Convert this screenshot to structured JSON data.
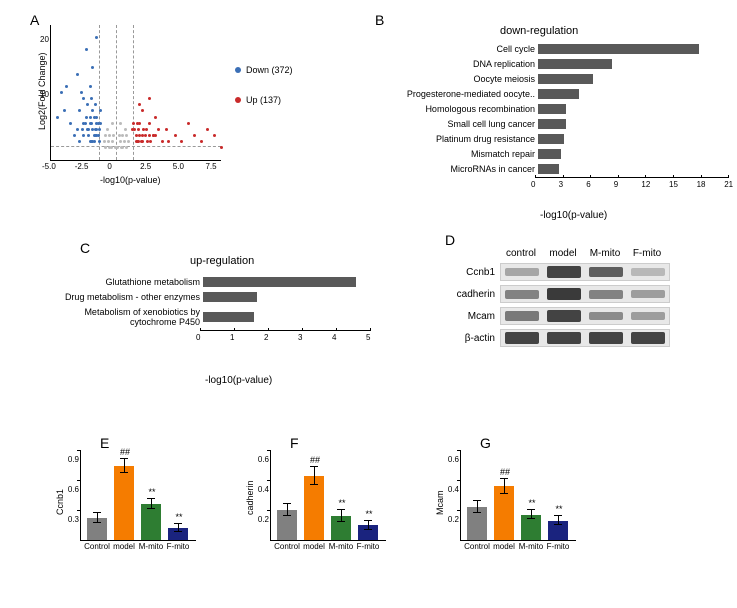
{
  "panels": {
    "A": {
      "label": "A",
      "x_label": "-log10(p-value)",
      "y_label": "Log2(Fold Change)",
      "x_ticks": [
        "-5.0",
        "-2.5",
        "0",
        "2.5",
        "5.0",
        "7.5"
      ],
      "y_ticks": [
        "10",
        "20"
      ],
      "legend": {
        "down": "Down  (372)",
        "down_color": "#3b6fb6",
        "up": "Up  (137)",
        "up_color": "#c92a2a"
      },
      "dashed_color": "#999999",
      "down_points": [
        [
          -1.5,
          4
        ],
        [
          -1.8,
          5
        ],
        [
          -2.0,
          3
        ],
        [
          -1.2,
          6
        ],
        [
          -2.5,
          4
        ],
        [
          -1.7,
          7
        ],
        [
          -1.3,
          3
        ],
        [
          -2.2,
          5
        ],
        [
          -1.9,
          6
        ],
        [
          -1.4,
          4
        ],
        [
          -2.8,
          3
        ],
        [
          -1.6,
          5
        ],
        [
          -2.1,
          4
        ],
        [
          -1.5,
          7
        ],
        [
          -2.4,
          6
        ],
        [
          -1.8,
          3
        ],
        [
          -1.2,
          8
        ],
        [
          -2.6,
          5
        ],
        [
          -1.7,
          4
        ],
        [
          -2.0,
          6
        ],
        [
          -1.5,
          5
        ],
        [
          -1.9,
          3
        ],
        [
          -2.3,
          7
        ],
        [
          -1.4,
          6
        ],
        [
          -1.6,
          4
        ],
        [
          -2.1,
          5
        ],
        [
          -1.8,
          8
        ],
        [
          -1.3,
          5
        ],
        [
          -2.5,
          6
        ],
        [
          -1.7,
          3
        ],
        [
          -2.0,
          7
        ],
        [
          -1.5,
          6
        ],
        [
          -3.0,
          5
        ],
        [
          -2.8,
          8
        ],
        [
          -3.5,
          6
        ],
        [
          -2.2,
          9
        ],
        [
          -1.9,
          10
        ],
        [
          -3.2,
          4
        ],
        [
          -2.7,
          11
        ],
        [
          -1.6,
          9
        ],
        [
          -4.0,
          8
        ],
        [
          -3.8,
          12
        ],
        [
          -2.5,
          10
        ],
        [
          -4.5,
          7
        ],
        [
          -3.0,
          14
        ],
        [
          -2.0,
          12
        ],
        [
          -1.8,
          15
        ],
        [
          -2.3,
          18
        ],
        [
          -1.5,
          20
        ],
        [
          -4.2,
          11
        ]
      ],
      "gray_points": [
        [
          -0.5,
          2
        ],
        [
          -0.3,
          3
        ],
        [
          -0.8,
          2
        ],
        [
          -0.2,
          4
        ],
        [
          -0.6,
          3
        ],
        [
          -0.4,
          2
        ],
        [
          -0.9,
          3
        ],
        [
          -0.1,
          2
        ],
        [
          0.5,
          2
        ],
        [
          0.3,
          3
        ],
        [
          0.8,
          2
        ],
        [
          0.2,
          4
        ],
        [
          0.6,
          3
        ],
        [
          0.4,
          2
        ],
        [
          0.9,
          3
        ],
        [
          0.1,
          2
        ],
        [
          -0.7,
          5
        ],
        [
          0.7,
          5
        ],
        [
          -0.5,
          4
        ],
        [
          0.5,
          4
        ],
        [
          -0.3,
          6
        ],
        [
          0.3,
          6
        ],
        [
          -0.8,
          4
        ],
        [
          0.8,
          4
        ]
      ],
      "up_points": [
        [
          1.5,
          3
        ],
        [
          1.8,
          4
        ],
        [
          2.0,
          3
        ],
        [
          1.2,
          5
        ],
        [
          2.5,
          4
        ],
        [
          1.7,
          3
        ],
        [
          1.3,
          6
        ],
        [
          2.2,
          4
        ],
        [
          1.9,
          3
        ],
        [
          1.4,
          5
        ],
        [
          2.8,
          4
        ],
        [
          1.6,
          3
        ],
        [
          2.1,
          5
        ],
        [
          1.5,
          4
        ],
        [
          2.4,
          3
        ],
        [
          1.8,
          6
        ],
        [
          3.0,
          4
        ],
        [
          2.6,
          3
        ],
        [
          1.7,
          5
        ],
        [
          2.0,
          4
        ],
        [
          3.5,
          3
        ],
        [
          2.3,
          5
        ],
        [
          1.6,
          6
        ],
        [
          2.8,
          4
        ],
        [
          4.0,
          3
        ],
        [
          3.2,
          5
        ],
        [
          2.5,
          6
        ],
        [
          4.5,
          4
        ],
        [
          5.0,
          3
        ],
        [
          3.8,
          5
        ],
        [
          6.0,
          4
        ],
        [
          7.0,
          5
        ],
        [
          5.5,
          6
        ],
        [
          6.5,
          3
        ],
        [
          7.5,
          4
        ],
        [
          2.0,
          8
        ],
        [
          3.0,
          7
        ],
        [
          1.8,
          9
        ],
        [
          2.5,
          10
        ],
        [
          8.0,
          2
        ]
      ]
    },
    "B": {
      "label": "B",
      "title": "down-regulation",
      "x_label": "-log10(p-value)",
      "x_ticks": [
        "0",
        "3",
        "6",
        "9",
        "12",
        "15",
        "18",
        "21"
      ],
      "bar_color": "#595959",
      "bars": [
        {
          "label": "Cell cycle",
          "value": 17.5
        },
        {
          "label": "DNA replication",
          "value": 8.0
        },
        {
          "label": "Oocyte meiosis",
          "value": 6.0
        },
        {
          "label": "Progesterone-mediated oocyte..",
          "value": 4.5
        },
        {
          "label": "Homologous recombination",
          "value": 3.0
        },
        {
          "label": "Small cell lung cancer",
          "value": 3.0
        },
        {
          "label": "Platinum drug resistance",
          "value": 2.8
        },
        {
          "label": "Mismatch repair",
          "value": 2.5
        },
        {
          "label": "MicroRNAs in cancer",
          "value": 2.3
        }
      ]
    },
    "C": {
      "label": "C",
      "title": "up-regulation",
      "x_label": "-log10(p-value)",
      "x_ticks": [
        "0",
        "1",
        "2",
        "3",
        "4",
        "5"
      ],
      "bar_color": "#595959",
      "bars": [
        {
          "label": "Glutathione metabolism",
          "value": 4.5
        },
        {
          "label": "Drug metabolism - other enzymes",
          "value": 1.6
        },
        {
          "label": "Metabolism of xenobiotics by\ncytochrome P450",
          "value": 1.5
        }
      ]
    },
    "D": {
      "label": "D",
      "headers": [
        "control",
        "model",
        "M-mito",
        "F-mito"
      ],
      "rows": [
        {
          "label": "Ccnb1",
          "intensities": [
            0.3,
            0.85,
            0.7,
            0.2
          ]
        },
        {
          "label": "cadherin",
          "intensities": [
            0.5,
            0.9,
            0.5,
            0.35
          ]
        },
        {
          "label": "Mcam",
          "intensities": [
            0.55,
            0.85,
            0.45,
            0.35
          ]
        },
        {
          "label": "β-actin",
          "intensities": [
            0.85,
            0.85,
            0.85,
            0.85
          ]
        }
      ]
    },
    "E": {
      "label": "E",
      "y_label": "Ccnb1",
      "y_max": 0.9,
      "y_ticks": [
        "0.3",
        "0.6",
        "0.9"
      ],
      "bars": [
        {
          "label": "Control",
          "value": 0.22,
          "err": 0.05,
          "color": "#808080",
          "sig": ""
        },
        {
          "label": "model",
          "value": 0.74,
          "err": 0.07,
          "color": "#f57c00",
          "sig": "##"
        },
        {
          "label": "M-mito",
          "value": 0.36,
          "err": 0.05,
          "color": "#2e7d32",
          "sig": "**"
        },
        {
          "label": "F-mito",
          "value": 0.12,
          "err": 0.04,
          "color": "#1a237e",
          "sig": "**"
        }
      ]
    },
    "F": {
      "label": "F",
      "y_label": "cadherin",
      "y_max": 0.6,
      "y_ticks": [
        "0.2",
        "0.4",
        "0.6"
      ],
      "bars": [
        {
          "label": "Control",
          "value": 0.2,
          "err": 0.04,
          "color": "#808080",
          "sig": ""
        },
        {
          "label": "model",
          "value": 0.43,
          "err": 0.06,
          "color": "#f57c00",
          "sig": "##"
        },
        {
          "label": "M-mito",
          "value": 0.16,
          "err": 0.04,
          "color": "#2e7d32",
          "sig": "**"
        },
        {
          "label": "F-mito",
          "value": 0.1,
          "err": 0.03,
          "color": "#1a237e",
          "sig": "**"
        }
      ]
    },
    "G": {
      "label": "G",
      "y_label": "Mcam",
      "y_max": 0.6,
      "y_ticks": [
        "0.2",
        "0.4",
        "0.6"
      ],
      "bars": [
        {
          "label": "Control",
          "value": 0.22,
          "err": 0.04,
          "color": "#808080",
          "sig": ""
        },
        {
          "label": "model",
          "value": 0.36,
          "err": 0.05,
          "color": "#f57c00",
          "sig": "##"
        },
        {
          "label": "M-mito",
          "value": 0.17,
          "err": 0.03,
          "color": "#2e7d32",
          "sig": "**"
        },
        {
          "label": "F-mito",
          "value": 0.13,
          "err": 0.03,
          "color": "#1a237e",
          "sig": "**"
        }
      ]
    }
  }
}
